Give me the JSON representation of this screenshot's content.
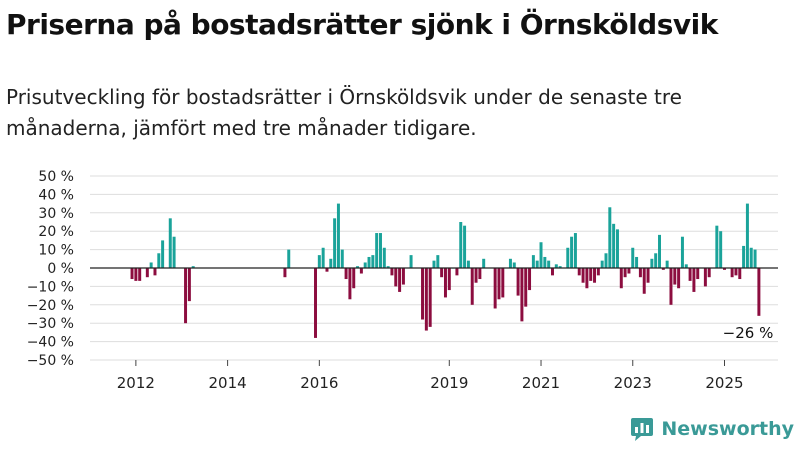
{
  "title": "Priserna på bostadsrätter sjönk i Örnsköldsvik",
  "subtitle": "Prisutveckling för bostadsrätter i Örnsköldsvik under de senaste tre månaderna, jämfört med tre månader tidigare.",
  "brand": {
    "name": "Newsworthy",
    "icon": "newsworthy-logo-icon",
    "color": "#3a9a97"
  },
  "chart_data": {
    "type": "bar",
    "ylim": [
      -50,
      50
    ],
    "ytick_values": [
      50,
      40,
      30,
      20,
      10,
      0,
      -10,
      -20,
      -30,
      -40,
      -50
    ],
    "ytick_labels": [
      "50 %",
      "40 %",
      "30 %",
      "20 %",
      "10 %",
      "0 %",
      "−10 %",
      "−20 %",
      "−30 %",
      "−40 %",
      "−50 %"
    ],
    "xtick_labels": [
      "2012",
      "2014",
      "2016",
      "2019",
      "2021",
      "2023",
      "2025"
    ],
    "xtick_positions": [
      "2012-03",
      "2014-03",
      "2016-03",
      "2019-01",
      "2021-01",
      "2023-01",
      "2025-01"
    ],
    "grid": true,
    "colors": {
      "positive": "#1aa39a",
      "negative": "#8c0d3f",
      "grid": "#dddddd",
      "zero_line": "#222222"
    },
    "final_label": "−26 %",
    "series": [
      {
        "points": [
          [
            "2012-02",
            -6
          ],
          [
            "2012-03",
            -7
          ],
          [
            "2012-04",
            -7
          ],
          [
            "2012-06",
            -5
          ],
          [
            "2012-07",
            3
          ],
          [
            "2012-08",
            -4
          ],
          [
            "2012-09",
            8
          ],
          [
            "2012-10",
            15
          ],
          [
            "2012-12",
            27
          ],
          [
            "2013-01",
            17
          ],
          [
            "2013-04",
            -30
          ],
          [
            "2013-05",
            -18
          ],
          [
            "2013-06",
            1
          ],
          [
            "2015-06",
            -5
          ],
          [
            "2015-07",
            10
          ],
          [
            "2016-02",
            -38
          ],
          [
            "2016-03",
            7
          ],
          [
            "2016-04",
            11
          ],
          [
            "2016-05",
            -2
          ],
          [
            "2016-06",
            5
          ],
          [
            "2016-07",
            27
          ],
          [
            "2016-08",
            35
          ],
          [
            "2016-09",
            10
          ],
          [
            "2016-10",
            -6
          ],
          [
            "2016-11",
            -17
          ],
          [
            "2016-12",
            -11
          ],
          [
            "2017-01",
            1
          ],
          [
            "2017-02",
            -3
          ],
          [
            "2017-03",
            3
          ],
          [
            "2017-04",
            6
          ],
          [
            "2017-05",
            7
          ],
          [
            "2017-06",
            19
          ],
          [
            "2017-07",
            19
          ],
          [
            "2017-08",
            11
          ],
          [
            "2017-09",
            1
          ],
          [
            "2017-10",
            -4
          ],
          [
            "2017-11",
            -10
          ],
          [
            "2017-12",
            -13
          ],
          [
            "2018-01",
            -9
          ],
          [
            "2018-03",
            7
          ],
          [
            "2018-06",
            -28
          ],
          [
            "2018-07",
            -34
          ],
          [
            "2018-08",
            -32
          ],
          [
            "2018-09",
            4
          ],
          [
            "2018-10",
            7
          ],
          [
            "2018-11",
            -5
          ],
          [
            "2018-12",
            -16
          ],
          [
            "2019-01",
            -12
          ],
          [
            "2019-02",
            0
          ],
          [
            "2019-03",
            -4
          ],
          [
            "2019-04",
            25
          ],
          [
            "2019-05",
            23
          ],
          [
            "2019-06",
            4
          ],
          [
            "2019-07",
            -20
          ],
          [
            "2019-08",
            -8
          ],
          [
            "2019-09",
            -6
          ],
          [
            "2019-10",
            5
          ],
          [
            "2020-01",
            -22
          ],
          [
            "2020-02",
            -17
          ],
          [
            "2020-03",
            -16
          ],
          [
            "2020-05",
            5
          ],
          [
            "2020-06",
            3
          ],
          [
            "2020-07",
            -15
          ],
          [
            "2020-08",
            -29
          ],
          [
            "2020-09",
            -21
          ],
          [
            "2020-10",
            -12
          ],
          [
            "2020-11",
            7
          ],
          [
            "2020-12",
            4
          ],
          [
            "2021-01",
            14
          ],
          [
            "2021-02",
            6
          ],
          [
            "2021-03",
            4
          ],
          [
            "2021-04",
            -4
          ],
          [
            "2021-05",
            2
          ],
          [
            "2021-06",
            1
          ],
          [
            "2021-08",
            11
          ],
          [
            "2021-09",
            17
          ],
          [
            "2021-10",
            19
          ],
          [
            "2021-11",
            -4
          ],
          [
            "2021-12",
            -8
          ],
          [
            "2022-01",
            -11
          ],
          [
            "2022-02",
            -7
          ],
          [
            "2022-03",
            -8
          ],
          [
            "2022-04",
            -4
          ],
          [
            "2022-05",
            4
          ],
          [
            "2022-06",
            8
          ],
          [
            "2022-07",
            33
          ],
          [
            "2022-08",
            24
          ],
          [
            "2022-09",
            21
          ],
          [
            "2022-10",
            -11
          ],
          [
            "2022-11",
            -5
          ],
          [
            "2022-12",
            -3
          ],
          [
            "2023-01",
            11
          ],
          [
            "2023-02",
            6
          ],
          [
            "2023-03",
            -5
          ],
          [
            "2023-04",
            -14
          ],
          [
            "2023-05",
            -8
          ],
          [
            "2023-06",
            5
          ],
          [
            "2023-07",
            8
          ],
          [
            "2023-08",
            18
          ],
          [
            "2023-09",
            -1
          ],
          [
            "2023-10",
            4
          ],
          [
            "2023-11",
            -20
          ],
          [
            "2023-12",
            -9
          ],
          [
            "2024-01",
            -11
          ],
          [
            "2024-02",
            17
          ],
          [
            "2024-03",
            2
          ],
          [
            "2024-04",
            -7
          ],
          [
            "2024-05",
            -13
          ],
          [
            "2024-06",
            -6
          ],
          [
            "2024-08",
            -10
          ],
          [
            "2024-09",
            -5
          ],
          [
            "2024-11",
            23
          ],
          [
            "2024-12",
            20
          ],
          [
            "2025-01",
            -1
          ],
          [
            "2025-03",
            -5
          ],
          [
            "2025-04",
            -4
          ],
          [
            "2025-05",
            -6
          ],
          [
            "2025-06",
            12
          ],
          [
            "2025-07",
            35
          ],
          [
            "2025-08",
            11
          ],
          [
            "2025-09",
            10
          ],
          [
            "2025-10",
            -26
          ]
        ]
      }
    ]
  }
}
